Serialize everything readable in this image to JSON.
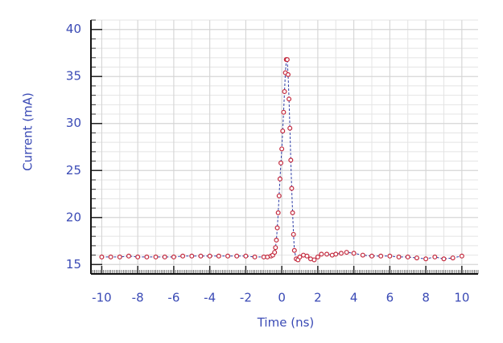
{
  "chart_data": {
    "type": "line",
    "x_label": "Time (ns)",
    "y_label": "Current (mA)",
    "x": [
      -10,
      -9.5,
      -9,
      -8.5,
      -8,
      -7.5,
      -7,
      -6.5,
      -6,
      -5.5,
      -5,
      -4.5,
      -4,
      -3.5,
      -3,
      -2.5,
      -2,
      -1.5,
      -1,
      -0.8,
      -0.6,
      -0.5,
      -0.4,
      -0.35,
      -0.3,
      -0.25,
      -0.2,
      -0.15,
      -0.1,
      -0.05,
      0,
      0.05,
      0.1,
      0.15,
      0.2,
      0.25,
      0.3,
      0.35,
      0.4,
      0.45,
      0.5,
      0.55,
      0.6,
      0.65,
      0.7,
      0.8,
      0.9,
      1.0,
      1.2,
      1.4,
      1.6,
      1.8,
      2.0,
      2.2,
      2.5,
      2.8,
      3.0,
      3.3,
      3.6,
      4.0,
      4.5,
      5.0,
      5.5,
      6.0,
      6.5,
      7.0,
      7.5,
      8.0,
      8.5,
      9.0,
      9.5,
      10.0
    ],
    "values": [
      15.8,
      15.8,
      15.8,
      15.9,
      15.8,
      15.8,
      15.8,
      15.8,
      15.8,
      15.9,
      15.9,
      15.9,
      15.9,
      15.9,
      15.9,
      15.9,
      15.9,
      15.8,
      15.8,
      15.8,
      15.9,
      16.0,
      16.3,
      16.8,
      17.6,
      18.9,
      20.5,
      22.3,
      24.1,
      25.8,
      27.3,
      29.2,
      31.2,
      33.4,
      35.4,
      36.8,
      36.8,
      35.2,
      32.6,
      29.5,
      26.1,
      23.1,
      20.5,
      18.2,
      16.5,
      15.6,
      15.5,
      15.8,
      16.0,
      15.9,
      15.6,
      15.5,
      15.8,
      16.1,
      16.1,
      16.0,
      16.1,
      16.2,
      16.3,
      16.2,
      16.0,
      15.9,
      15.9,
      15.9,
      15.8,
      15.8,
      15.7,
      15.6,
      15.8,
      15.6,
      15.7,
      15.9
    ],
    "color": "#2f3fa8",
    "marker_color": "#c3283c",
    "xlim": [
      -10.6,
      10.9
    ],
    "ylim": [
      14,
      41
    ],
    "xticks": [
      -10,
      -8,
      -6,
      -4,
      -2,
      0,
      2,
      4,
      6,
      8,
      10
    ],
    "yticks": [
      15,
      20,
      25,
      30,
      35,
      40
    ],
    "grid": true
  }
}
